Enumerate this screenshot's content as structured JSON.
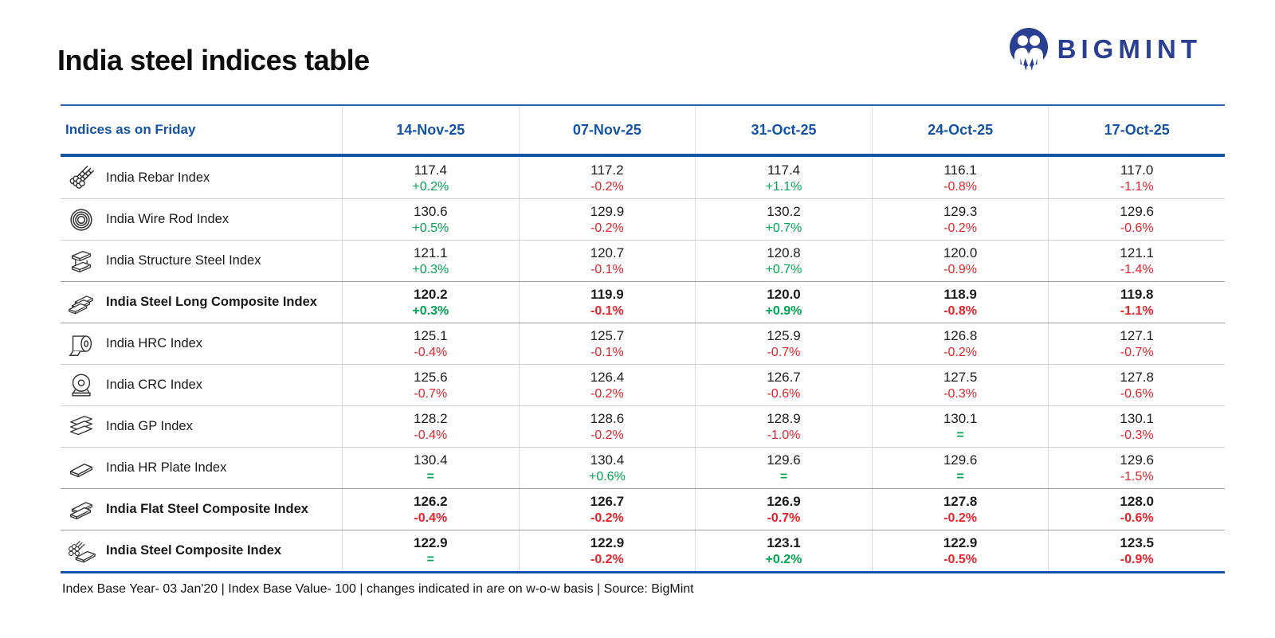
{
  "page": {
    "title": "India steel indices table",
    "brand": "BIGMINT",
    "footnote": "Index Base Year- 03 Jan'20 | Index Base Value- 100 | changes indicated in are on w-o-w basis | Source: BigMint"
  },
  "colors": {
    "accent_blue": "#1453a6",
    "positive_green": "#00a651",
    "negative_red": "#e6232a",
    "brand_navy": "#2b3f92"
  },
  "table": {
    "header": {
      "label": "Indices as on Friday",
      "dates": [
        "14-Nov-25",
        "07-Nov-25",
        "31-Oct-25",
        "24-Oct-25",
        "17-Oct-25"
      ]
    },
    "rows": [
      {
        "icon": "rebar-icon",
        "label": "India Rebar Index",
        "bold": false,
        "cells": [
          {
            "value": "117.4",
            "change": "+0.2%"
          },
          {
            "value": "117.2",
            "change": "-0.2%"
          },
          {
            "value": "117.4",
            "change": "+1.1%"
          },
          {
            "value": "116.1",
            "change": "-0.8%"
          },
          {
            "value": "117.0",
            "change": "-1.1%"
          }
        ]
      },
      {
        "icon": "wire-rod-icon",
        "label": "India Wire Rod Index",
        "bold": false,
        "cells": [
          {
            "value": "130.6",
            "change": "+0.5%"
          },
          {
            "value": "129.9",
            "change": "-0.2%"
          },
          {
            "value": "130.2",
            "change": "+0.7%"
          },
          {
            "value": "129.3",
            "change": "-0.2%"
          },
          {
            "value": "129.6",
            "change": "-0.6%"
          }
        ]
      },
      {
        "icon": "structure-steel-icon",
        "label": "India Structure Steel Index",
        "bold": false,
        "cells": [
          {
            "value": "121.1",
            "change": "+0.3%"
          },
          {
            "value": "120.7",
            "change": "-0.1%"
          },
          {
            "value": "120.8",
            "change": "+0.7%"
          },
          {
            "value": "120.0",
            "change": "-0.9%"
          },
          {
            "value": "121.1",
            "change": "-1.4%"
          }
        ]
      },
      {
        "icon": "steel-long-composite-icon",
        "label": "India Steel Long Composite Index",
        "bold": true,
        "cells": [
          {
            "value": "120.2",
            "change": "+0.3%"
          },
          {
            "value": "119.9",
            "change": "-0.1%"
          },
          {
            "value": "120.0",
            "change": "+0.9%"
          },
          {
            "value": "118.9",
            "change": "-0.8%"
          },
          {
            "value": "119.8",
            "change": "-1.1%"
          }
        ]
      },
      {
        "icon": "hrc-coil-icon",
        "label": "India HRC Index",
        "bold": false,
        "cells": [
          {
            "value": "125.1",
            "change": "-0.4%"
          },
          {
            "value": "125.7",
            "change": "-0.1%"
          },
          {
            "value": "125.9",
            "change": "-0.7%"
          },
          {
            "value": "126.8",
            "change": "-0.2%"
          },
          {
            "value": "127.1",
            "change": "-0.7%"
          }
        ]
      },
      {
        "icon": "crc-coil-icon",
        "label": "India CRC Index",
        "bold": false,
        "cells": [
          {
            "value": "125.6",
            "change": "-0.7%"
          },
          {
            "value": "126.4",
            "change": "-0.2%"
          },
          {
            "value": "126.7",
            "change": "-0.6%"
          },
          {
            "value": "127.5",
            "change": "-0.3%"
          },
          {
            "value": "127.8",
            "change": "-0.6%"
          }
        ]
      },
      {
        "icon": "gp-sheets-icon",
        "label": "India GP Index",
        "bold": false,
        "cells": [
          {
            "value": "128.2",
            "change": "-0.4%"
          },
          {
            "value": "128.6",
            "change": "-0.2%"
          },
          {
            "value": "128.9",
            "change": "-1.0%"
          },
          {
            "value": "130.1",
            "change": "="
          },
          {
            "value": "130.1",
            "change": "-0.3%"
          }
        ]
      },
      {
        "icon": "hr-plate-icon",
        "label": "India HR Plate Index",
        "bold": false,
        "cells": [
          {
            "value": "130.4",
            "change": "="
          },
          {
            "value": "130.4",
            "change": "+0.6%"
          },
          {
            "value": "129.6",
            "change": "="
          },
          {
            "value": "129.6",
            "change": "="
          },
          {
            "value": "129.6",
            "change": "-1.5%"
          }
        ]
      },
      {
        "icon": "flat-steel-composite-icon",
        "label": "India Flat Steel Composite Index",
        "bold": true,
        "cells": [
          {
            "value": "126.2",
            "change": "-0.4%"
          },
          {
            "value": "126.7",
            "change": "-0.2%"
          },
          {
            "value": "126.9",
            "change": "-0.7%"
          },
          {
            "value": "127.8",
            "change": "-0.2%"
          },
          {
            "value": "128.0",
            "change": "-0.6%"
          }
        ]
      },
      {
        "icon": "steel-composite-icon",
        "label": "India Steel Composite Index",
        "bold": true,
        "cells": [
          {
            "value": "122.9",
            "change": "="
          },
          {
            "value": "122.9",
            "change": "-0.2%"
          },
          {
            "value": "123.1",
            "change": "+0.2%"
          },
          {
            "value": "122.9",
            "change": "-0.5%"
          },
          {
            "value": "123.5",
            "change": "-0.9%"
          }
        ]
      }
    ]
  },
  "chart_data": {
    "type": "table",
    "title": "India steel indices table",
    "categories": [
      "14-Nov-25",
      "07-Nov-25",
      "31-Oct-25",
      "24-Oct-25",
      "17-Oct-25"
    ],
    "series": [
      {
        "name": "India Rebar Index",
        "values": [
          117.4,
          117.2,
          117.4,
          116.1,
          117.0
        ],
        "changes": [
          "+0.2%",
          "-0.2%",
          "+1.1%",
          "-0.8%",
          "-1.1%"
        ]
      },
      {
        "name": "India Wire Rod Index",
        "values": [
          130.6,
          129.9,
          130.2,
          129.3,
          129.6
        ],
        "changes": [
          "+0.5%",
          "-0.2%",
          "+0.7%",
          "-0.2%",
          "-0.6%"
        ]
      },
      {
        "name": "India Structure Steel Index",
        "values": [
          121.1,
          120.7,
          120.8,
          120.0,
          121.1
        ],
        "changes": [
          "+0.3%",
          "-0.1%",
          "+0.7%",
          "-0.9%",
          "-1.4%"
        ]
      },
      {
        "name": "India Steel Long Composite Index",
        "values": [
          120.2,
          119.9,
          120.0,
          118.9,
          119.8
        ],
        "changes": [
          "+0.3%",
          "-0.1%",
          "+0.9%",
          "-0.8%",
          "-1.1%"
        ]
      },
      {
        "name": "India HRC Index",
        "values": [
          125.1,
          125.7,
          125.9,
          126.8,
          127.1
        ],
        "changes": [
          "-0.4%",
          "-0.1%",
          "-0.7%",
          "-0.2%",
          "-0.7%"
        ]
      },
      {
        "name": "India CRC Index",
        "values": [
          125.6,
          126.4,
          126.7,
          127.5,
          127.8
        ],
        "changes": [
          "-0.7%",
          "-0.2%",
          "-0.6%",
          "-0.3%",
          "-0.6%"
        ]
      },
      {
        "name": "India GP Index",
        "values": [
          128.2,
          128.6,
          128.9,
          130.1,
          130.1
        ],
        "changes": [
          "-0.4%",
          "-0.2%",
          "-1.0%",
          "=",
          "-0.3%"
        ]
      },
      {
        "name": "India HR Plate Index",
        "values": [
          130.4,
          130.4,
          129.6,
          129.6,
          129.6
        ],
        "changes": [
          "=",
          "+0.6%",
          "=",
          "=",
          "-1.5%"
        ]
      },
      {
        "name": "India Flat Steel Composite Index",
        "values": [
          126.2,
          126.7,
          126.9,
          127.8,
          128.0
        ],
        "changes": [
          "-0.4%",
          "-0.2%",
          "-0.7%",
          "-0.2%",
          "-0.6%"
        ]
      },
      {
        "name": "India Steel Composite Index",
        "values": [
          122.9,
          122.9,
          123.1,
          122.9,
          123.5
        ],
        "changes": [
          "=",
          "-0.2%",
          "+0.2%",
          "-0.5%",
          "-0.9%"
        ]
      }
    ]
  }
}
